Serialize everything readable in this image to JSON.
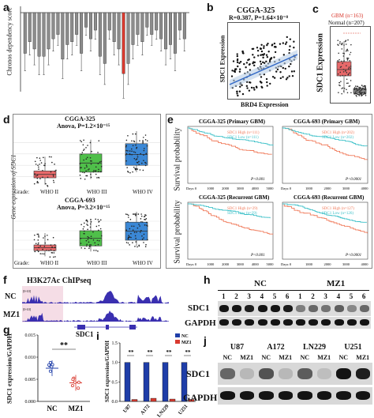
{
  "panels": {
    "a": {
      "label": "a",
      "ylabel": "Chronos dependency score"
    },
    "b": {
      "label": "b",
      "title": "CGGA-325",
      "stats": "R=0.387, P=1.64×10⁻⁸",
      "xlabel": "BRD4 Expression",
      "ylabel": "SDC1 Expression"
    },
    "c": {
      "label": "c",
      "legend_gbm": "GBM (n=163)",
      "legend_normal": "Normal (n=207)",
      "ylabel": "SDC1 Expression"
    },
    "d": {
      "label": "d",
      "ylabel": "Gene expression of SDC1",
      "top_title": "CGGA-325",
      "top_stats": "Anova, P=1.2×10⁻¹⁵",
      "bottom_title": "CGGA-693",
      "bottom_stats": "Anova, P=3.2×10⁻¹⁵",
      "grade_label": "Grade:",
      "grades": [
        "WHO II",
        "WHO III",
        "WHO IV"
      ]
    },
    "e": {
      "label": "e",
      "ylabel": "Survival probability",
      "x_label": "Days:",
      "subplots": [
        {
          "title": "CGGA-325 (Primary GBM)",
          "high": "SDC1 High (n=111)",
          "low": "SDC1 Low (n=111)",
          "p": "P<0.001",
          "ticks": [
            "0",
            "1000",
            "2000",
            "3000",
            "4000",
            "5000"
          ]
        },
        {
          "title": "CGGA-693 (Primary GBM)",
          "high": "SDC1 High (n=202)",
          "low": "SDC1 Low (n=202)",
          "p": "P<0.0001",
          "ticks": [
            "0",
            "1000",
            "2000",
            "3000",
            "4000"
          ]
        },
        {
          "title": "CGGA-325 (Recurrent GBM)",
          "high": "SDC1 High (n=29)",
          "low": "SDC1 Low (n=29)",
          "p": "P<0.001",
          "ticks": [
            "0",
            "1000",
            "2000",
            "3000",
            "4000",
            "5000"
          ]
        },
        {
          "title": "CGGA-693 (Recurrent GBM)",
          "high": "SDC1 High (n=127)",
          "low": "SDC1 Low (n=126)",
          "p": "P<0.0001",
          "ticks": [
            "0",
            "1000",
            "2000",
            "3000",
            "4000"
          ]
        }
      ]
    },
    "f": {
      "label": "f",
      "title": "H3K27Ac ChIPseq",
      "track_nc": "NC",
      "track_mz1": "MZ1",
      "range": "[0-10]",
      "gene": "SDC1"
    },
    "g": {
      "label": "g",
      "ylabel": "SDC1 expression/GAPDH",
      "sig": "**",
      "groups": [
        "NC",
        "MZ1"
      ],
      "ticks": [
        "0.000",
        "0.005",
        "0.010",
        "0.015"
      ]
    },
    "h": {
      "label": "h",
      "group_nc": "NC",
      "group_mz1": "MZ1",
      "lanes": [
        "1",
        "2",
        "3",
        "4",
        "5",
        "6",
        "1",
        "2",
        "3",
        "4",
        "5",
        "6"
      ],
      "row1": "SDC1",
      "row2": "GAPDH"
    },
    "i": {
      "label": "i",
      "ylabel": "SDC1 expression/GAPDH",
      "legend": [
        "NC",
        "MZ1"
      ],
      "cells": [
        "U87",
        "A172",
        "LN229",
        "U251"
      ],
      "sig": "**",
      "ticks": [
        "0.0",
        "0.5",
        "1.0",
        "1.5"
      ]
    },
    "j": {
      "label": "j",
      "cells": [
        "U87",
        "A172",
        "LN229",
        "U251"
      ],
      "conds": [
        "NC",
        "MZ1"
      ],
      "row1": "SDC1",
      "row2": "GAPDH"
    }
  },
  "colors": {
    "accent_red": "#d93a2f",
    "accent_blue": "#1f3ea8",
    "km_red": "#f07a5a",
    "km_cyan": "#3cc0c8",
    "box_red": "#e8696a",
    "box_green": "#4fbf4a",
    "box_blue": "#3b88d6",
    "chip_fill": "#3a2fb0",
    "chip_bg": "#f5dde6"
  },
  "chart_data": [
    {
      "type": "bar",
      "panel": "a",
      "ylabel": "Chronos dependency score",
      "values": [
        -0.28,
        -0.2,
        -0.25,
        -0.3,
        -0.3,
        -0.25,
        -0.18,
        -0.15,
        -0.32,
        -0.22,
        -0.2,
        -0.15,
        -0.28,
        -0.1,
        -0.18,
        -0.12,
        -0.3,
        -0.35,
        -0.12,
        -0.2,
        -0.25,
        -0.42,
        -0.35,
        -0.22,
        -0.15,
        -0.2,
        -0.1,
        -0.15,
        -0.12,
        -0.18,
        -0.25,
        -0.22,
        -0.28,
        -0.12,
        -0.18
      ],
      "highlight_index": 21
    },
    {
      "type": "bar",
      "panel": "g",
      "ylabel": "SDC1 expression/GAPDH",
      "categories": [
        "NC",
        "MZ1"
      ],
      "values": [
        0.0075,
        0.0042
      ],
      "ylim": [
        0,
        0.015
      ]
    },
    {
      "type": "bar",
      "panel": "i",
      "ylabel": "SDC1 expression/GAPDH",
      "categories": [
        "U87",
        "A172",
        "LN229",
        "U251"
      ],
      "series": [
        {
          "name": "NC",
          "values": [
            1.0,
            1.0,
            1.0,
            1.0
          ]
        },
        {
          "name": "MZ1",
          "values": [
            0.05,
            0.08,
            0.06,
            0.05
          ]
        }
      ],
      "ylim": [
        0,
        1.5
      ]
    }
  ]
}
